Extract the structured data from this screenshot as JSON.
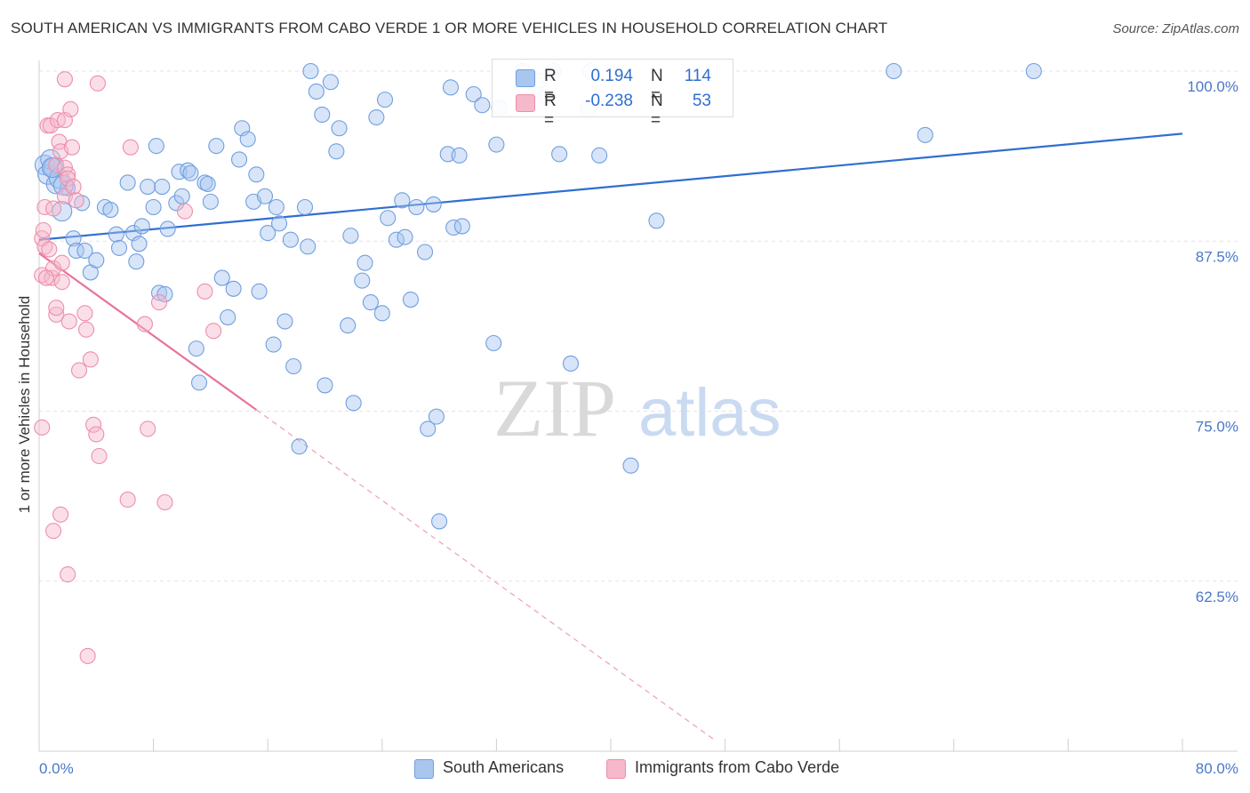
{
  "title": "SOUTH AMERICAN VS IMMIGRANTS FROM CABO VERDE 1 OR MORE VEHICLES IN HOUSEHOLD CORRELATION CHART",
  "source": "Source: ZipAtlas.com",
  "watermark": {
    "zip": "ZIP",
    "atlas": "atlas"
  },
  "legend": {
    "rows": [
      {
        "r_label": "R =",
        "r_value": "0.194",
        "n_label": "N =",
        "n_value": "114",
        "color": "#a9c6ef"
      },
      {
        "r_label": "R =",
        "r_value": "-0.238",
        "n_label": "N =",
        "n_value": "53",
        "color": "#f6b8cb"
      }
    ]
  },
  "chart_data": {
    "type": "scatter",
    "title": "SOUTH AMERICAN VS IMMIGRANTS FROM CABO VERDE 1 OR MORE VEHICLES IN HOUSEHOLD CORRELATION CHART",
    "ylabel": "1 or more Vehicles in Household",
    "xlabel": "",
    "xlim": [
      0,
      80
    ],
    "ylim": [
      50,
      100
    ],
    "x_tick_labels": [
      "0.0%",
      "80.0%"
    ],
    "y_ticks": [
      62.5,
      75.0,
      87.5,
      100.0
    ],
    "y_tick_labels": [
      "62.5%",
      "75.0%",
      "87.5%",
      "100.0%"
    ],
    "grid": true,
    "legend_position": "top-center",
    "series": [
      {
        "name": "South Americans",
        "color": "#6f9fe0",
        "fill": "#a9c6ef",
        "trend": {
          "x": [
            0,
            80
          ],
          "y": [
            87.6,
            95.4
          ],
          "color": "#2f6fd0"
        },
        "points": [
          [
            0.4,
            93.1
          ],
          [
            0.6,
            92.4
          ],
          [
            0.8,
            93.5
          ],
          [
            1.0,
            92.9
          ],
          [
            1.2,
            91.7
          ],
          [
            1.4,
            92.1
          ],
          [
            1.6,
            89.7
          ],
          [
            2.0,
            91.4
          ],
          [
            2.4,
            87.7
          ],
          [
            2.6,
            86.8
          ],
          [
            3.0,
            90.3
          ],
          [
            3.2,
            86.8
          ],
          [
            3.6,
            85.2
          ],
          [
            4.0,
            86.1
          ],
          [
            4.6,
            90.0
          ],
          [
            5.0,
            89.8
          ],
          [
            5.4,
            88.0
          ],
          [
            5.6,
            87.0
          ],
          [
            6.2,
            91.8
          ],
          [
            6.6,
            88.1
          ],
          [
            6.8,
            86.0
          ],
          [
            7.0,
            87.3
          ],
          [
            7.2,
            88.6
          ],
          [
            7.6,
            91.5
          ],
          [
            8.0,
            90.0
          ],
          [
            8.2,
            94.5
          ],
          [
            8.4,
            83.7
          ],
          [
            8.6,
            91.5
          ],
          [
            8.8,
            83.6
          ],
          [
            9.0,
            88.4
          ],
          [
            9.6,
            90.3
          ],
          [
            9.8,
            92.6
          ],
          [
            10.0,
            90.8
          ],
          [
            10.4,
            92.7
          ],
          [
            10.6,
            92.5
          ],
          [
            11.0,
            79.6
          ],
          [
            11.2,
            77.1
          ],
          [
            11.6,
            91.8
          ],
          [
            11.8,
            91.7
          ],
          [
            12.0,
            90.4
          ],
          [
            12.4,
            94.5
          ],
          [
            12.8,
            84.8
          ],
          [
            13.2,
            81.9
          ],
          [
            13.6,
            84.0
          ],
          [
            14.0,
            93.5
          ],
          [
            14.2,
            95.8
          ],
          [
            14.6,
            95.0
          ],
          [
            15.0,
            90.4
          ],
          [
            15.2,
            92.4
          ],
          [
            15.4,
            83.8
          ],
          [
            15.8,
            90.8
          ],
          [
            16.0,
            88.1
          ],
          [
            16.4,
            79.9
          ],
          [
            16.6,
            90.0
          ],
          [
            16.8,
            88.8
          ],
          [
            17.2,
            81.6
          ],
          [
            17.6,
            87.6
          ],
          [
            17.8,
            78.3
          ],
          [
            18.2,
            72.4
          ],
          [
            18.6,
            90.0
          ],
          [
            18.8,
            87.1
          ],
          [
            19.0,
            100.0
          ],
          [
            19.4,
            98.5
          ],
          [
            19.8,
            96.8
          ],
          [
            20.0,
            76.9
          ],
          [
            20.4,
            99.2
          ],
          [
            20.8,
            94.1
          ],
          [
            21.0,
            95.8
          ],
          [
            21.6,
            81.3
          ],
          [
            21.8,
            87.9
          ],
          [
            22.0,
            75.6
          ],
          [
            22.6,
            84.6
          ],
          [
            22.8,
            85.9
          ],
          [
            23.2,
            83.0
          ],
          [
            23.6,
            96.6
          ],
          [
            24.0,
            82.2
          ],
          [
            24.2,
            97.9
          ],
          [
            24.4,
            89.2
          ],
          [
            25.0,
            87.6
          ],
          [
            25.4,
            90.5
          ],
          [
            25.6,
            87.8
          ],
          [
            26.0,
            83.2
          ],
          [
            26.4,
            90.0
          ],
          [
            27.0,
            86.7
          ],
          [
            27.2,
            73.7
          ],
          [
            27.6,
            90.2
          ],
          [
            27.8,
            74.6
          ],
          [
            28.0,
            66.9
          ],
          [
            28.6,
            93.9
          ],
          [
            28.8,
            98.8
          ],
          [
            29.0,
            88.5
          ],
          [
            29.4,
            93.8
          ],
          [
            29.6,
            88.6
          ],
          [
            30.4,
            98.3
          ],
          [
            31.0,
            97.5
          ],
          [
            31.8,
            80.0
          ],
          [
            32.0,
            94.6
          ],
          [
            32.2,
            97.3
          ],
          [
            33.8,
            100.0
          ],
          [
            35.0,
            99.3
          ],
          [
            35.4,
            98.1
          ],
          [
            36.0,
            100.0
          ],
          [
            36.4,
            93.9
          ],
          [
            37.2,
            78.5
          ],
          [
            38.4,
            97.2
          ],
          [
            38.6,
            100.0
          ],
          [
            39.2,
            93.8
          ],
          [
            41.4,
            71.0
          ],
          [
            43.2,
            89.0
          ],
          [
            59.8,
            100.0
          ],
          [
            62.0,
            95.3
          ],
          [
            69.6,
            100.0
          ],
          [
            0.9,
            92.9
          ],
          [
            1.7,
            91.6
          ]
        ]
      },
      {
        "name": "Immigrants from Cabo Verde",
        "color": "#ec8fab",
        "fill": "#f6b8cb",
        "trend": {
          "x": [
            0,
            15.2
          ],
          "y": [
            86.6,
            75.1
          ],
          "dashed_to": [
            47.3,
            50.8
          ],
          "color": "#e8739b"
        },
        "points": [
          [
            0.2,
            87.7
          ],
          [
            0.2,
            73.8
          ],
          [
            0.2,
            85.0
          ],
          [
            0.3,
            88.3
          ],
          [
            0.4,
            90.0
          ],
          [
            0.4,
            87.1
          ],
          [
            0.6,
            96.0
          ],
          [
            0.7,
            86.9
          ],
          [
            0.8,
            96.0
          ],
          [
            0.9,
            84.8
          ],
          [
            1.0,
            89.9
          ],
          [
            1.0,
            85.5
          ],
          [
            1.0,
            66.2
          ],
          [
            1.2,
            93.1
          ],
          [
            1.2,
            82.1
          ],
          [
            1.2,
            82.6
          ],
          [
            1.3,
            96.4
          ],
          [
            1.4,
            94.8
          ],
          [
            1.5,
            94.1
          ],
          [
            1.5,
            67.4
          ],
          [
            1.6,
            84.5
          ],
          [
            1.6,
            85.9
          ],
          [
            1.8,
            92.9
          ],
          [
            1.8,
            90.8
          ],
          [
            1.8,
            96.4
          ],
          [
            1.8,
            99.4
          ],
          [
            2.0,
            63.0
          ],
          [
            2.0,
            92.4
          ],
          [
            2.0,
            92.1
          ],
          [
            2.1,
            81.6
          ],
          [
            2.2,
            97.2
          ],
          [
            2.3,
            94.4
          ],
          [
            2.4,
            91.5
          ],
          [
            2.6,
            90.5
          ],
          [
            2.8,
            78.0
          ],
          [
            3.2,
            82.2
          ],
          [
            3.3,
            81.0
          ],
          [
            3.4,
            57.0
          ],
          [
            3.6,
            78.8
          ],
          [
            3.8,
            74.0
          ],
          [
            4.0,
            73.3
          ],
          [
            4.1,
            99.1
          ],
          [
            4.2,
            71.7
          ],
          [
            6.2,
            68.5
          ],
          [
            6.4,
            94.4
          ],
          [
            7.4,
            81.4
          ],
          [
            7.6,
            73.7
          ],
          [
            8.4,
            83.0
          ],
          [
            8.8,
            68.3
          ],
          [
            10.2,
            89.7
          ],
          [
            11.6,
            83.8
          ],
          [
            12.2,
            80.9
          ],
          [
            0.5,
            84.8
          ]
        ]
      }
    ]
  },
  "bottom_legend": [
    {
      "label": "South Americans",
      "color": "#a9c6ef"
    },
    {
      "label": "Immigrants from Cabo Verde",
      "color": "#f6b8cb"
    }
  ]
}
